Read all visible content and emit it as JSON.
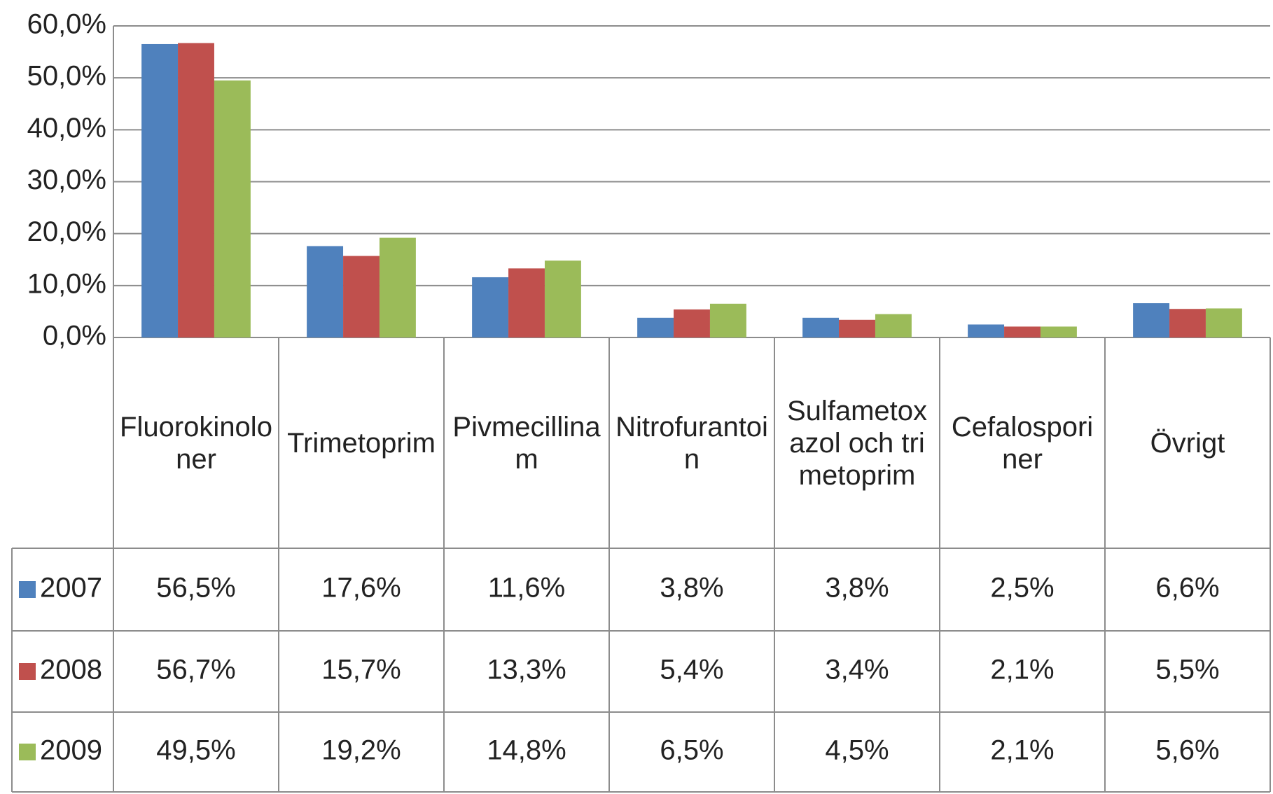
{
  "chart_data": {
    "type": "bar",
    "categories": [
      "Fluorokinoloner",
      "Trimetoprim",
      "Pivmecillinam",
      "Nitrofurantoin",
      "Sulfametoxazol och trimetoprim",
      "Cefalosporiner",
      "Övrigt"
    ],
    "series": [
      {
        "name": "2007",
        "color": "#4f81bd",
        "values": [
          56.5,
          17.6,
          11.6,
          3.8,
          3.8,
          2.5,
          6.6
        ],
        "value_labels": [
          "56,5%",
          "17,6%",
          "11,6%",
          "3,8%",
          "3,8%",
          "2,5%",
          "6,6%"
        ]
      },
      {
        "name": "2008",
        "color": "#c0504d",
        "values": [
          56.7,
          15.7,
          13.3,
          5.4,
          3.4,
          2.1,
          5.5
        ],
        "value_labels": [
          "56,7%",
          "15,7%",
          "13,3%",
          "5,4%",
          "3,4%",
          "2,1%",
          "5,5%"
        ]
      },
      {
        "name": "2009",
        "color": "#9bbb59",
        "values": [
          49.5,
          19.2,
          14.8,
          6.5,
          4.5,
          2.1,
          5.6
        ],
        "value_labels": [
          "49,5%",
          "19,2%",
          "14,8%",
          "6,5%",
          "4,5%",
          "2,1%",
          "5,6%"
        ]
      }
    ],
    "ylim": [
      0,
      60
    ],
    "yticks": [
      {
        "value": 0,
        "label": "0,0%"
      },
      {
        "value": 10,
        "label": "10,0%"
      },
      {
        "value": 20,
        "label": "20,0%"
      },
      {
        "value": 30,
        "label": "30,0%"
      },
      {
        "value": 40,
        "label": "40,0%"
      },
      {
        "value": 50,
        "label": "50,0%"
      },
      {
        "value": 60,
        "label": "60,0%"
      }
    ],
    "grid": true
  }
}
